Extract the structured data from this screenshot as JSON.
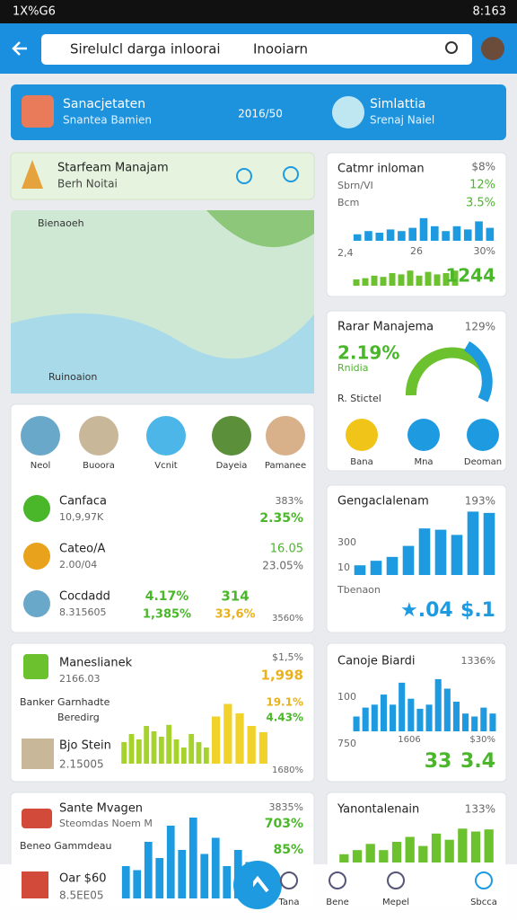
{
  "status_bar": {
    "left": "1X%G6",
    "time": "8:163"
  },
  "search": {
    "query": "Sirelulcl darga inloorai",
    "tag": "Inooiarn"
  },
  "banner": {
    "left_title": "Sanacjetaten",
    "left_subtitle": "Snantea Bamien",
    "center": "2016/50",
    "right_title": "Simlattia",
    "right_subtitle": "Srenaj Naiel"
  },
  "manager_card": {
    "title": "Starfeam Manajam",
    "subtitle": "Berh Noitai"
  },
  "map_card": {
    "top_label": "Bienaoeh",
    "bottom_label": "Ruinoaion"
  },
  "card_a": {
    "title": "Catmr inloman",
    "subtitle": "Sbrn/VI",
    "label": "Bcm",
    "stat_1": "$8%",
    "stat_2": "12%",
    "stat_3": "3.5%",
    "axis_1": "2,4",
    "axis_2": "26",
    "stat_4": "30%",
    "total": "1244",
    "bars_top": {
      "color": "#1e9be0",
      "values": [
        20,
        30,
        25,
        35,
        30,
        40,
        70,
        45,
        30,
        45,
        35,
        60,
        40
      ]
    },
    "bars_bottom": {
      "color": "#6cc12e",
      "values": [
        25,
        30,
        40,
        35,
        50,
        45,
        60,
        40,
        55,
        45,
        50,
        60
      ]
    }
  },
  "card_b": {
    "title": "Rarar Manajema",
    "stat": "129%",
    "value": "2.19%",
    "value_sub": "Rnidia",
    "label": "R. Stictel",
    "icons": [
      "Bana",
      "Mna",
      "Deoman"
    ]
  },
  "icon_row": [
    "Neol",
    "Buoora",
    "Vcnit",
    "Dayeia",
    "Pamanee"
  ],
  "list": [
    {
      "title": "Canfaca",
      "sub": "10,9,97K",
      "stat": "383%",
      "value": "2.35%"
    },
    {
      "title": "Cateo/A",
      "sub": "2.00/04",
      "stat": "16.05",
      "value": "23.05%"
    },
    {
      "title": "Cocdadd",
      "sub": "8.315605",
      "pct": "4.17%",
      "pct_sub": "1,385%",
      "num": "314",
      "num_sub": "33,6%",
      "extra": "3560%"
    }
  ],
  "card_c": {
    "title": "Gengaclalenam",
    "stat": "193%",
    "axis_1": "300",
    "axis_2": "10",
    "label": "Tbenaon",
    "value_1": "★.04",
    "value_2": "$.1",
    "bars": {
      "color": "#1e9be0",
      "values": [
        15,
        22,
        28,
        45,
        72,
        70,
        62,
        98,
        96
      ]
    }
  },
  "card_d": {
    "title": "Maneslianek",
    "sub": "2166.03",
    "stat": "$1,5%",
    "value": "1,998",
    "label": "Banker Garnhadte",
    "label_sub": "Beredirg",
    "pct_1": "19.1%",
    "pct_2": "4.43%",
    "row_title": "Bjo Stein",
    "row_sub": "2.15005",
    "extra": "1680%",
    "bars": {
      "color": "#a6d22e",
      "values": [
        40,
        55,
        45,
        70,
        60,
        50,
        72,
        45,
        30,
        55,
        40,
        30
      ]
    },
    "bars_2": {
      "color": "#f0d22a",
      "values": [
        75,
        95,
        80,
        60,
        50
      ]
    }
  },
  "card_e": {
    "title": "Canoje Biardi",
    "stat": "1336%",
    "axis_1": "100",
    "axis_2": "750",
    "label_1": "1606",
    "label_2": "$30%",
    "value_1": "33",
    "value_2": "3.4",
    "bars": {
      "color": "#1e9be0",
      "values": [
        25,
        40,
        45,
        62,
        45,
        82,
        55,
        38,
        45,
        88,
        72,
        50,
        30,
        25,
        40,
        30
      ]
    }
  },
  "card_f": {
    "title": "Sante Mvagen",
    "sub": "Steomdas Noem M",
    "stat": "3835%",
    "value": "703%",
    "pct": "85%",
    "label": "Beneo Gammdeau",
    "row_title": "Oar $60",
    "row_sub": "8.5EE05",
    "bars": {
      "color": "#1e9be0",
      "values": [
        40,
        35,
        70,
        50,
        90,
        60,
        100,
        55,
        75,
        40,
        60,
        45
      ]
    }
  },
  "card_g": {
    "title": "Yanontalenain",
    "stat": "133%",
    "bars": {
      "color": "#6cc12e",
      "values": [
        20,
        30,
        45,
        30,
        50,
        62,
        40,
        70,
        55,
        82,
        75,
        80
      ]
    }
  },
  "nav": [
    "Tana",
    "Bene",
    "Mepel",
    "Sbcca"
  ]
}
